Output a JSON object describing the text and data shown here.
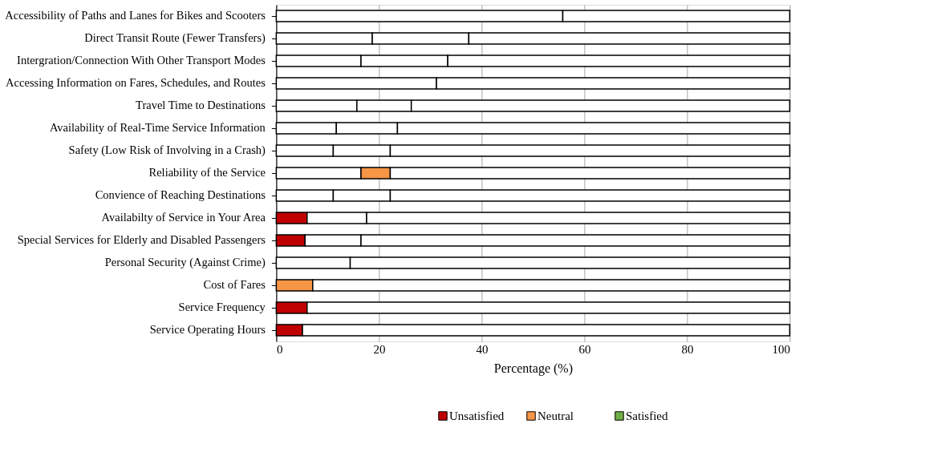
{
  "chart_data": {
    "type": "bar",
    "orientation": "horizontal",
    "stacked": true,
    "xlabel": "Percentage (%)",
    "categories": [
      "Accessibility of Paths and Lanes for Bikes and Scooters",
      "Direct Transit Route (Fewer Transfers)",
      "Intergration/Connection With Other Transport Modes",
      "Accessing Information on Fares, Schedules, and Routes",
      "Travel Time to Destinations",
      "Availability of Real-Time Service Information",
      "Safety (Low Risk of Involving in a Crash)",
      "Reliability of the Service",
      "Convience of Reaching Destinations",
      "Availabilty of Service in Your Area",
      "Special Services for Elderly and Disabled Passengers",
      "Personal Security (Against Crime)",
      "Cost of Fares",
      "Service Frequency",
      "Service Operating Hours"
    ],
    "series": [
      {
        "name": "Unsatisfied",
        "color": "#c00000",
        "values": [
          55.8,
          18.7,
          16.5,
          31.2,
          15.7,
          11.7,
          11.1,
          16.5,
          11.1,
          6.0,
          5.6,
          14.4,
          0,
          6.0,
          5.1
        ],
        "colors": [
          "#ffffff",
          "#ffffff",
          "#ffffff",
          "#ffffff",
          "#ffffff",
          "#ffffff",
          "#ffffff",
          "#ffffff",
          "#ffffff",
          "#c00000",
          "#c00000",
          "#ffffff",
          "#ffffff",
          "#c00000",
          "#c00000"
        ]
      },
      {
        "name": "Neutral",
        "color": "#f79646",
        "values": [
          0,
          18.8,
          16.9,
          0,
          10.6,
          11.9,
          11.1,
          5.7,
          11.1,
          11.6,
          10.9,
          0,
          7.1,
          0,
          0
        ],
        "colors": [
          "#ffffff",
          "#ffffff",
          "#ffffff",
          "#ffffff",
          "#ffffff",
          "#ffffff",
          "#ffffff",
          "#f79646",
          "#ffffff",
          "#ffffff",
          "#ffffff",
          "#ffffff",
          "#f79646",
          "#ffffff",
          "#ffffff"
        ]
      },
      {
        "name": "Satisfied",
        "color": "#70ad47",
        "values": [
          44.2,
          62.5,
          66.6,
          68.8,
          73.7,
          76.4,
          77.8,
          77.8,
          77.8,
          82.4,
          83.5,
          85.6,
          92.9,
          94.0,
          94.9
        ],
        "colors": [
          "#ffffff",
          "#ffffff",
          "#ffffff",
          "#ffffff",
          "#ffffff",
          "#ffffff",
          "#ffffff",
          "#ffffff",
          "#ffffff",
          "#ffffff",
          "#ffffff",
          "#ffffff",
          "#ffffff",
          "#ffffff",
          "#ffffff"
        ]
      }
    ],
    "xlim": [
      0,
      100
    ],
    "xticks": [
      0,
      20,
      40,
      60,
      80,
      100
    ],
    "grid": "x",
    "legend": "bottom"
  }
}
